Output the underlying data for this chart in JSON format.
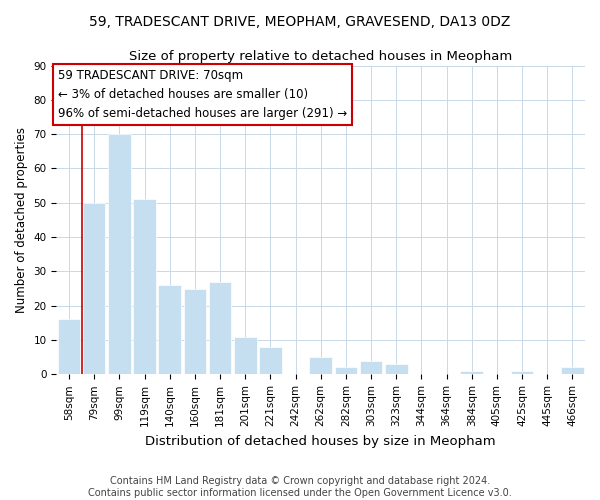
{
  "title": "59, TRADESCANT DRIVE, MEOPHAM, GRAVESEND, DA13 0DZ",
  "subtitle": "Size of property relative to detached houses in Meopham",
  "xlabel": "Distribution of detached houses by size in Meopham",
  "ylabel": "Number of detached properties",
  "footer_line1": "Contains HM Land Registry data © Crown copyright and database right 2024.",
  "footer_line2": "Contains public sector information licensed under the Open Government Licence v3.0.",
  "annotation_line1": "59 TRADESCANT DRIVE: 70sqm",
  "annotation_line2": "← 3% of detached houses are smaller (10)",
  "annotation_line3": "96% of semi-detached houses are larger (291) →",
  "bar_labels": [
    "58sqm",
    "79sqm",
    "99sqm",
    "119sqm",
    "140sqm",
    "160sqm",
    "181sqm",
    "201sqm",
    "221sqm",
    "242sqm",
    "262sqm",
    "282sqm",
    "303sqm",
    "323sqm",
    "344sqm",
    "364sqm",
    "384sqm",
    "405sqm",
    "425sqm",
    "445sqm",
    "466sqm"
  ],
  "bar_values": [
    16,
    50,
    70,
    51,
    26,
    25,
    27,
    11,
    8,
    0,
    5,
    2,
    4,
    3,
    0,
    0,
    1,
    0,
    1,
    0,
    2
  ],
  "bar_color": "#c5dff0",
  "annotation_box_color": "#ffffff",
  "annotation_box_edge": "#cc0000",
  "red_line_x": 0.5,
  "ylim": [
    0,
    90
  ],
  "yticks": [
    0,
    10,
    20,
    30,
    40,
    50,
    60,
    70,
    80,
    90
  ],
  "title_fontsize": 10,
  "subtitle_fontsize": 9.5,
  "xlabel_fontsize": 9.5,
  "ylabel_fontsize": 8.5,
  "tick_fontsize": 7.5,
  "annotation_fontsize": 8.5,
  "footer_fontsize": 7
}
